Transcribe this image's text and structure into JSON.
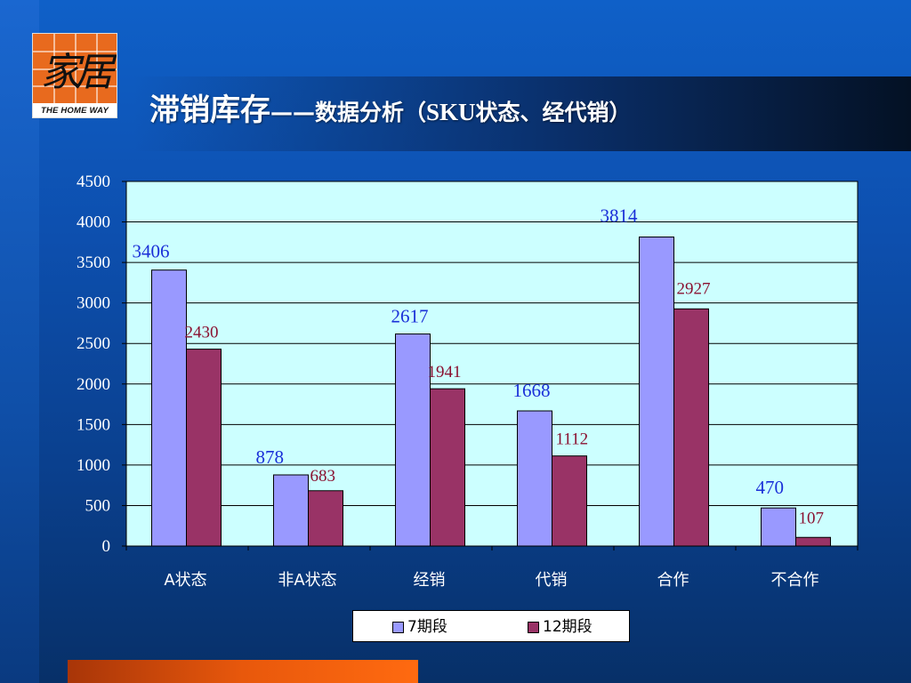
{
  "header": {
    "title_main": "滞销库存",
    "title_dash": "——",
    "title_sub1": "数据分析（",
    "title_latin": "SKU",
    "title_sub2": "状态、经代销）"
  },
  "logo": {
    "glyph": "家居",
    "text": "THE HOME WAY"
  },
  "colors": {
    "series1": "#9999ff",
    "series2": "#993366",
    "plot_bg": "#ccffff",
    "label_s1": "#1a2fd8",
    "label_s2": "#8a1030"
  },
  "chart_data": {
    "type": "bar",
    "categories": [
      "A状态",
      "非A状态",
      "经销",
      "代销",
      "合作",
      "不合作"
    ],
    "series": [
      {
        "name": "7期段",
        "values": [
          3406,
          878,
          2617,
          1668,
          3814,
          470
        ]
      },
      {
        "name": "12期段",
        "values": [
          2430,
          683,
          1941,
          1112,
          2927,
          107
        ]
      }
    ],
    "yticks": [
      "0",
      "500",
      "1000",
      "1500",
      "2000",
      "2500",
      "3000",
      "3500",
      "4000",
      "4500"
    ],
    "ylim": [
      0,
      4500
    ],
    "grid": true,
    "legend_position": "bottom"
  }
}
